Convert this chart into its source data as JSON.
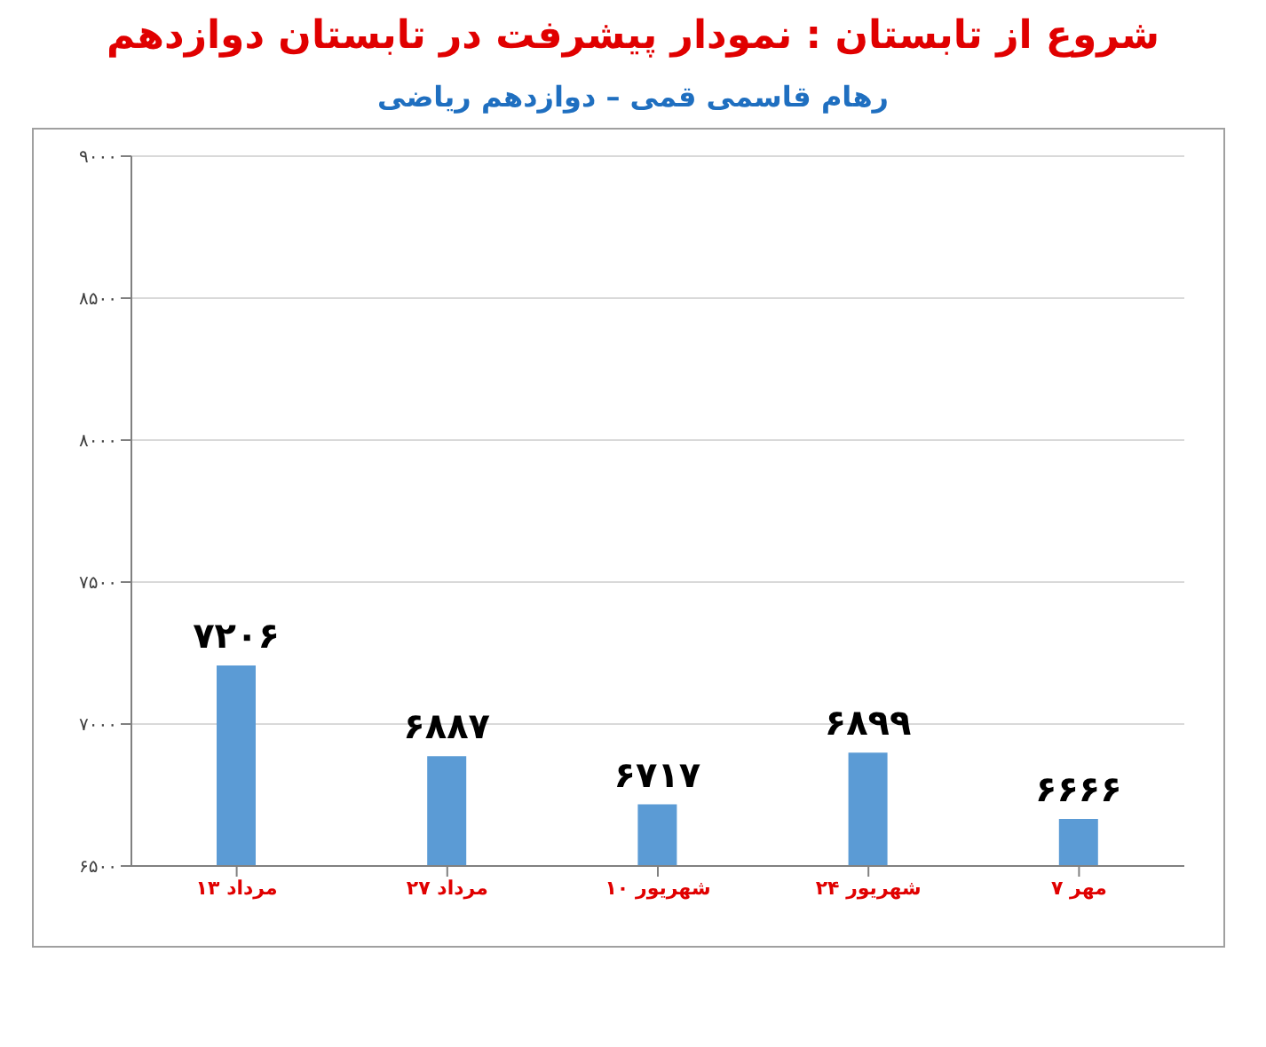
{
  "chart_data": {
    "type": "bar",
    "title": "شروع از تابستان : نمودار پیشرفت در تابستان دوازدهم",
    "subtitle": "رهام قاسمی قمی – دوازدهم ریاضی",
    "categories": [
      "۱۳ مرداد",
      "۲۷ مرداد",
      "۱۰ شهریور",
      "۲۴ شهریور",
      "۷ مهر"
    ],
    "values": [
      7206,
      6887,
      6717,
      6899,
      6666
    ],
    "color": "#5b9bd5",
    "value_labels": [
      "۷۲۰۶",
      "۶۸۸۷",
      "۶۷۱۷",
      "۶۸۹۹",
      "۶۶۶۶"
    ],
    "ylim": [
      6500,
      9000
    ],
    "yticks": [
      {
        "value": 6500,
        "label": "۶۵۰۰"
      },
      {
        "value": 7000,
        "label": "۷۰۰۰"
      },
      {
        "value": 7500,
        "label": "۷۵۰۰"
      },
      {
        "value": 8000,
        "label": "۸۰۰۰"
      },
      {
        "value": 8500,
        "label": "۸۵۰۰"
      },
      {
        "value": 9000,
        "label": "۹۰۰۰"
      }
    ],
    "grid": "y",
    "legend": false
  }
}
